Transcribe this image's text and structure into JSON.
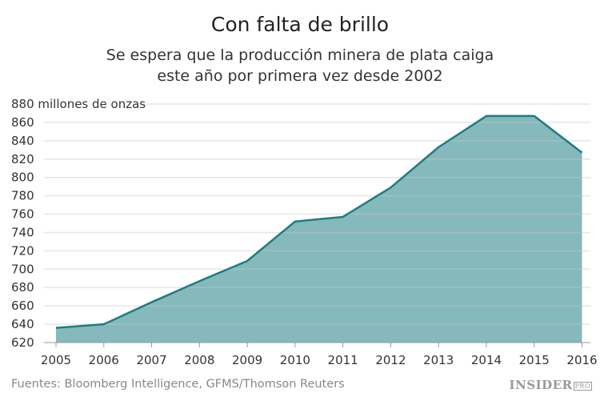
{
  "chart_data": {
    "type": "area",
    "title": "Con falta de brillo",
    "subtitle_lines": [
      "Se espera que la producción minera de plata caiga",
      "este año por primera vez desde 2002"
    ],
    "ylabel": "millones de onzas",
    "categories": [
      "2005",
      "2006",
      "2007",
      "2008",
      "2009",
      "2010",
      "2011",
      "2012",
      "2013",
      "2014",
      "2015",
      "2016"
    ],
    "values": [
      636,
      640,
      664,
      687,
      709,
      752,
      757,
      789,
      833,
      867,
      867,
      827
    ],
    "ylim": [
      620,
      880
    ],
    "yticks": [
      620,
      640,
      660,
      680,
      700,
      720,
      740,
      760,
      780,
      800,
      820,
      840,
      860,
      880
    ],
    "grid": true,
    "colors": {
      "line": "#1f7c80",
      "fill": "#85b9bc",
      "grid": "#e3e3e3"
    }
  },
  "source": "Fuentes: Bloomberg Intelligence, GFMS/Thomson Reuters",
  "logo": {
    "main": "INSIDER",
    "suffix": "PRO"
  }
}
